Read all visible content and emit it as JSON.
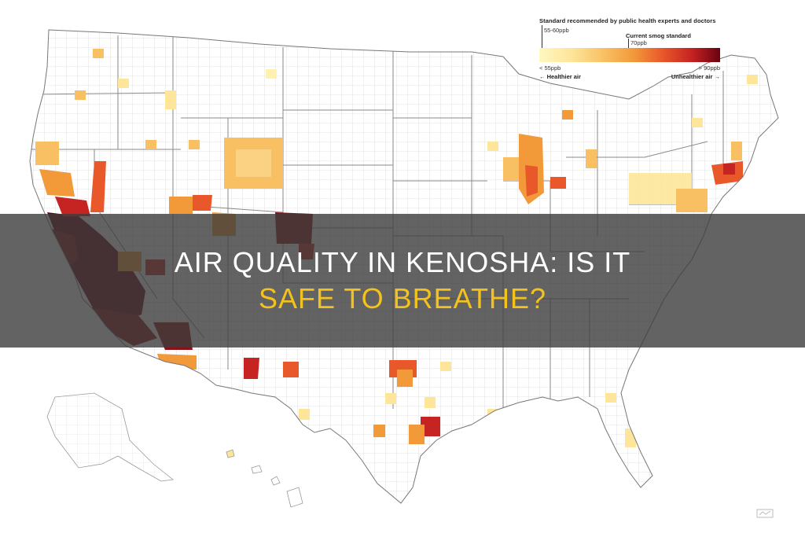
{
  "title": {
    "line1": "AIR QUALITY IN KENOSHA: IS IT",
    "line2": "SAFE TO BREATHE?"
  },
  "legend": {
    "header": "Standard recommended by public health experts and doctors",
    "range_label": "55-60ppb",
    "current_label": "Current smog standard",
    "current_value": "70ppb",
    "min_label": "< 55ppb",
    "max_label": "> 90ppb",
    "left_label": "← Healthier air",
    "right_label": "Unhealthier air →",
    "colors": [
      "#fff7c2",
      "#fde59a",
      "#f9bf63",
      "#f29a3a",
      "#e9582a",
      "#c62323",
      "#6b0212"
    ]
  },
  "colors": {
    "banner_bg": "#3c3c3c",
    "title_white": "#ffffff",
    "title_yellow": "#f4c21d",
    "county_line": "#cfcfcf",
    "state_line": "#8a8a8a"
  }
}
